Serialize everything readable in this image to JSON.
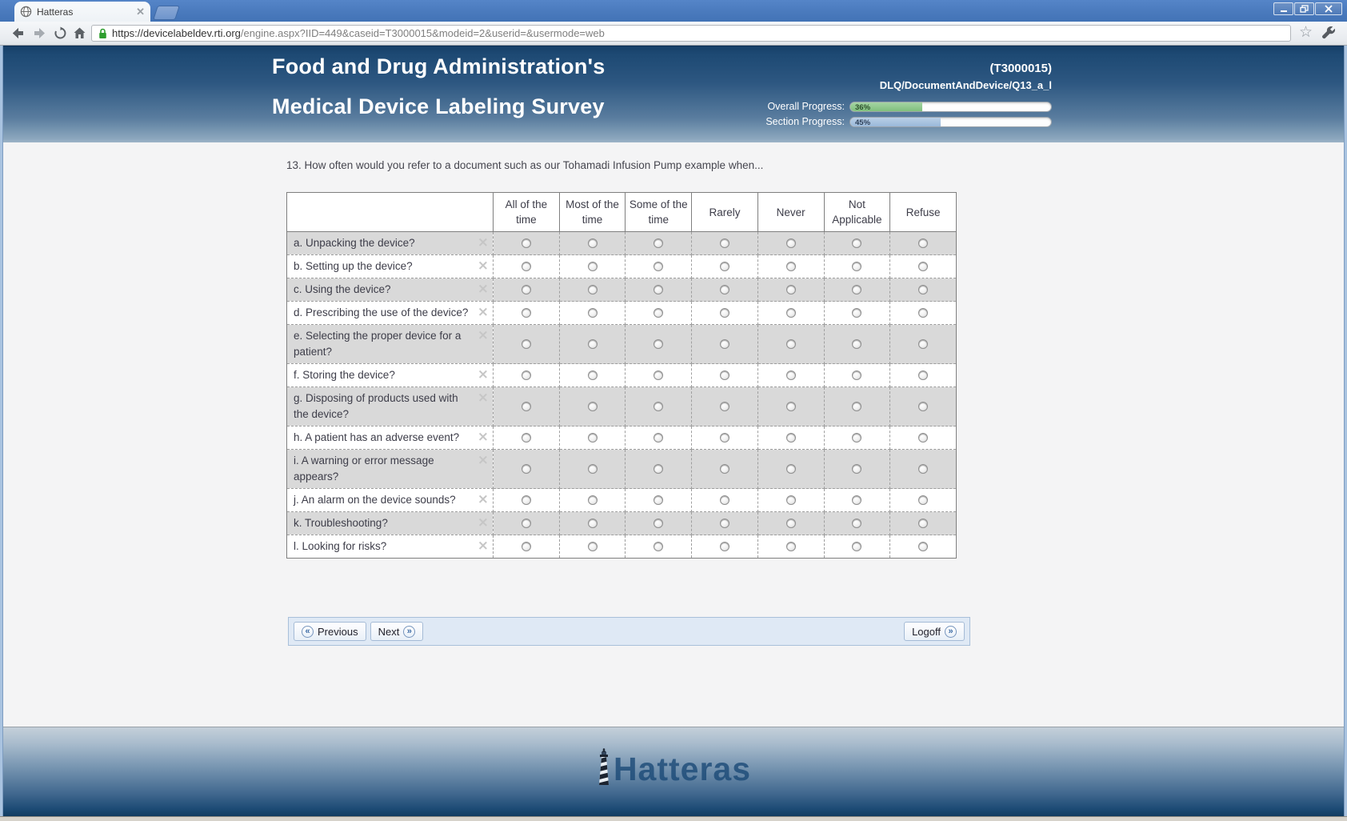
{
  "window": {
    "tab_title": "Hatteras"
  },
  "browser": {
    "url_host": "https://devicelabeldev.rti.org",
    "url_path": "/engine.aspx?IID=449&caseid=T3000015&modeid=2&userid=&usermode=web"
  },
  "header": {
    "title_line1": "Food and Drug Administration's",
    "title_line2": "Medical Device Labeling Survey",
    "case_id": "(T3000015)",
    "breadcrumb": "DLQ/DocumentAndDevice/Q13_a_l",
    "overall_label": "Overall Progress:",
    "overall_value": "36%",
    "overall_pct": 36,
    "section_label": "Section Progress:",
    "section_value": "45%",
    "section_pct": 45,
    "overall_fill_color": "#8fc98f",
    "section_fill_color": "#a9c3de"
  },
  "survey": {
    "question": "13. How often would you refer to a document such as our Tohamadi Infusion Pump example when...",
    "columns": [
      "All of the time",
      "Most of the time",
      "Some of the time",
      "Rarely",
      "Never",
      "Not Applicable",
      "Refuse"
    ],
    "rows": [
      {
        "label": "a. Unpacking the device?"
      },
      {
        "label": "b. Setting up the device?"
      },
      {
        "label": "c. Using the device?"
      },
      {
        "label": "d. Prescribing the use of the device?"
      },
      {
        "label": "e. Selecting the proper device for a patient?"
      },
      {
        "label": "f. Storing the device?"
      },
      {
        "label": "g. Disposing of products used with the device?"
      },
      {
        "label": "h. A patient has an adverse event?"
      },
      {
        "label": "i. A warning or error message appears?"
      },
      {
        "label": "j. An alarm on the device sounds?"
      },
      {
        "label": "k. Troubleshooting?"
      },
      {
        "label": "l. Looking for risks?"
      }
    ]
  },
  "nav": {
    "previous_label": "Previous",
    "next_label": "Next",
    "logoff_label": "Logoff"
  },
  "footer": {
    "brand": "Hatteras"
  }
}
